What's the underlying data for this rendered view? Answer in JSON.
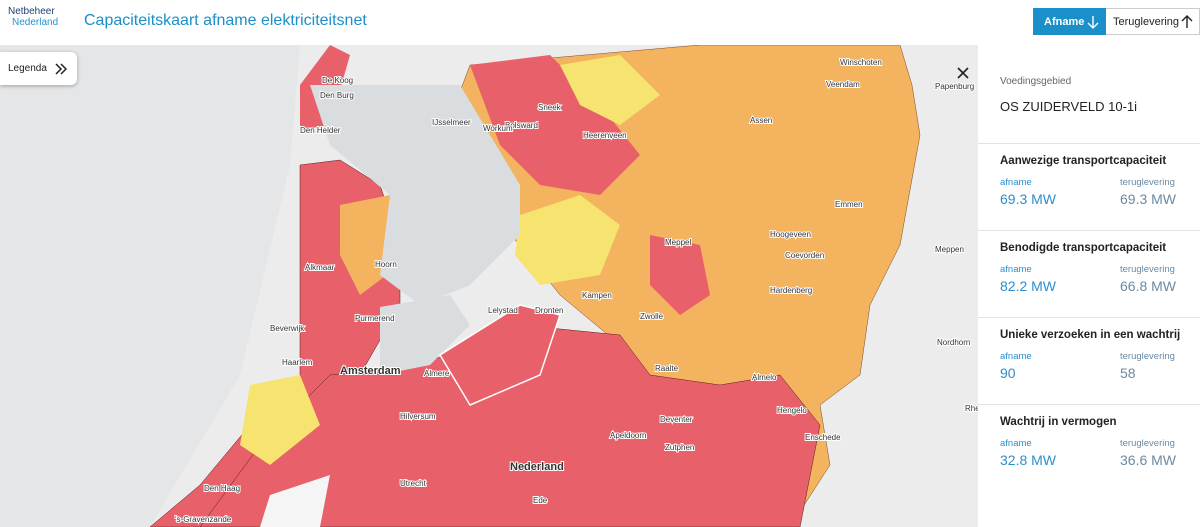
{
  "header": {
    "logo": [
      "Netbeheer",
      "Nederland"
    ],
    "title": "Capaciteitskaart afname elektriciteitsnet",
    "tabs": [
      "Afname",
      "Teruglevering"
    ]
  },
  "legend_button": "Legenda",
  "panel": {
    "label": "Voedingsgebied",
    "name": "OS ZUIDERVELD 10-1i",
    "sections": [
      {
        "title": "Aanwezige transportcapaciteit",
        "afname_label": "afname",
        "afname": "69.3 MW",
        "teruglevering_label": "teruglevering",
        "teruglevering": "69.3 MW"
      },
      {
        "title": "Benodigde transportcapaciteit",
        "afname_label": "afname",
        "afname": "82.2 MW",
        "teruglevering_label": "teruglevering",
        "teruglevering": "66.8 MW"
      },
      {
        "title": "Unieke verzoeken in een wachtrij",
        "afname_label": "afname",
        "afname": "90",
        "teruglevering_label": "teruglevering",
        "teruglevering": "58"
      },
      {
        "title": "Wachtrij in vermogen",
        "afname_label": "afname",
        "afname": "32.8 MW",
        "teruglevering_label": "teruglevering",
        "teruglevering": "36.6 MW"
      }
    ]
  },
  "map": {
    "labels": [
      "De Koog",
      "Den Burg",
      "Den Helder",
      "IJsselmeer",
      "Bolsward",
      "Sneek",
      "Workum",
      "Heerenveen",
      "Assen",
      "Veendam",
      "Winschoten",
      "Papenburg",
      "Emmen",
      "Hoogeveen",
      "Meppel",
      "Coevorden",
      "Meppen",
      "Hardenberg",
      "Kampen",
      "Lelystad",
      "Dronten",
      "Zwolle",
      "Nordhorn",
      "Raalte",
      "Almelo",
      "Hengelo",
      "Enschede",
      "Rheine",
      "Alkmaar",
      "Hoorn",
      "Purmerend",
      "Beverwijk",
      "Haarlem",
      "Amsterdam",
      "Almere",
      "Hilversum",
      "Apeldoorn",
      "Deventer",
      "Zutphen",
      "Nederland",
      "Utrecht",
      "Ede",
      "Den Haag",
      "'s-Gravenzande"
    ]
  }
}
